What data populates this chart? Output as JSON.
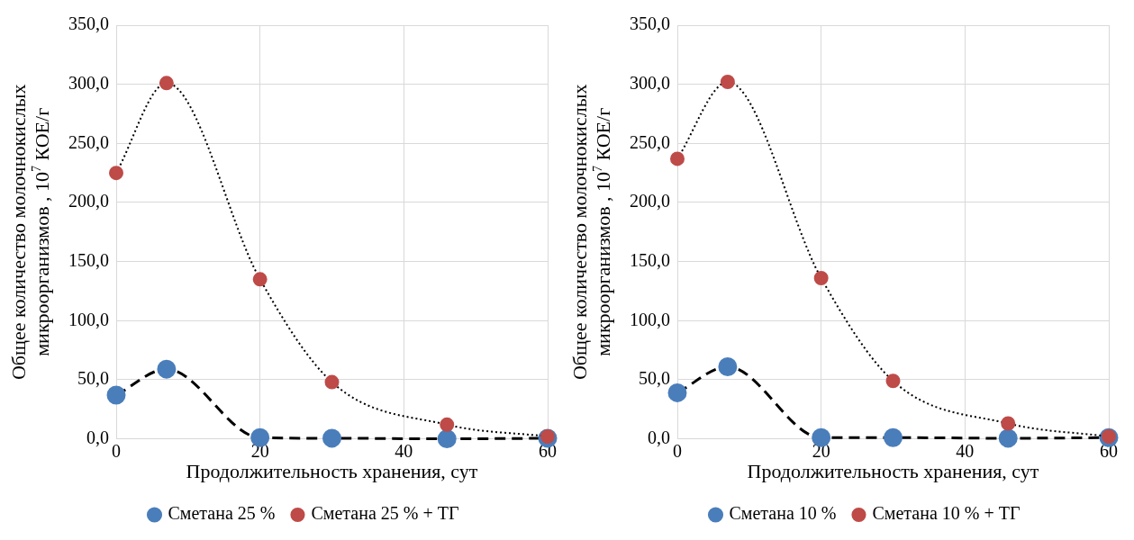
{
  "chart_data": [
    {
      "type": "line",
      "xlabel": "Продолжительность хранения, сут",
      "ylabel": "Общее количество молочнокислых микроорганизмов , 10$^{7}$ КОЕ/г",
      "x": [
        0,
        7,
        20,
        30,
        46,
        60
      ],
      "xlim": [
        0,
        60
      ],
      "xticks": [
        0,
        20,
        40,
        60
      ],
      "ylim": [
        0,
        350
      ],
      "yticks": [
        {
          "value": 0,
          "label": "0,0"
        },
        {
          "value": 50,
          "label": "50,0"
        },
        {
          "value": 100,
          "label": "100,0"
        },
        {
          "value": 150,
          "label": "150,0"
        },
        {
          "value": 200,
          "label": "200,0"
        },
        {
          "value": 250,
          "label": "250,0"
        },
        {
          "value": 300,
          "label": "300,0"
        },
        {
          "value": 350,
          "label": "350,0"
        }
      ],
      "grid": true,
      "legend": "bottom",
      "marker": "circle",
      "series": [
        {
          "name": "Сметана 25 %",
          "color": "#4a7ebb",
          "line_style": "dashed",
          "values": [
            37,
            59,
            1,
            0.5,
            0,
            0.5
          ]
        },
        {
          "name": "Сметана 25 % + ТГ",
          "color": "#be4b48",
          "line_style": "dotted",
          "values": [
            225,
            301,
            135,
            48,
            12,
            2
          ]
        }
      ]
    },
    {
      "type": "line",
      "xlabel": "Продолжительность хранения, сут",
      "ylabel": "Общее количество молочнокислых микроорганизмов , 10$^{7}$ КОЕ/г",
      "x": [
        0,
        7,
        20,
        30,
        46,
        60
      ],
      "xlim": [
        0,
        60
      ],
      "xticks": [
        0,
        20,
        40,
        60
      ],
      "ylim": [
        0,
        350
      ],
      "yticks": [
        {
          "value": 0,
          "label": "0,0"
        },
        {
          "value": 50,
          "label": "50,0"
        },
        {
          "value": 100,
          "label": "100,0"
        },
        {
          "value": 150,
          "label": "150,0"
        },
        {
          "value": 200,
          "label": "200,0"
        },
        {
          "value": 250,
          "label": "250,0"
        },
        {
          "value": 300,
          "label": "300,0"
        },
        {
          "value": 350,
          "label": "350,0"
        }
      ],
      "grid": true,
      "legend": "bottom",
      "marker": "circle",
      "series": [
        {
          "name": "Сметана 10 %",
          "color": "#4a7ebb",
          "line_style": "dashed",
          "values": [
            39,
            61,
            1,
            1,
            0.5,
            1
          ]
        },
        {
          "name": "Сметана 10 % + ТГ",
          "color": "#be4b48",
          "line_style": "dotted",
          "values": [
            237,
            302,
            136,
            49,
            13,
            2
          ]
        }
      ]
    }
  ]
}
